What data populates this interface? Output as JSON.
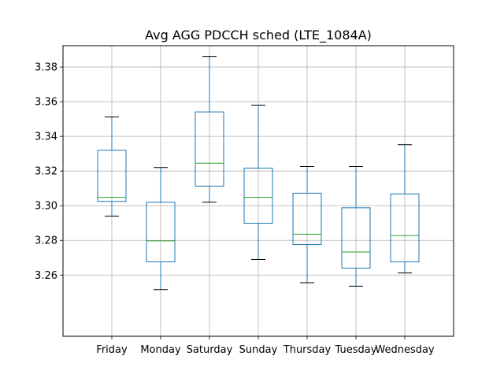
{
  "chart_data": {
    "type": "box",
    "title": "Avg AGG PDCCH sched (LTE_1084A)",
    "xlabel": "",
    "ylabel": "",
    "categories": [
      "Friday",
      "Monday",
      "Saturday",
      "Sunday",
      "Thursday",
      "Tuesday",
      "Wednesday"
    ],
    "boxes": [
      {
        "whisker_low": 3.294,
        "q1": 3.3025,
        "median": 3.3048,
        "q3": 3.332,
        "whisker_high": 3.3512
      },
      {
        "whisker_low": 3.2516,
        "q1": 3.2676,
        "median": 3.2797,
        "q3": 3.302,
        "whisker_high": 3.322
      },
      {
        "whisker_low": 3.302,
        "q1": 3.3113,
        "median": 3.3245,
        "q3": 3.3541,
        "whisker_high": 3.3861
      },
      {
        "whisker_low": 3.269,
        "q1": 3.2899,
        "median": 3.3048,
        "q3": 3.3217,
        "whisker_high": 3.358
      },
      {
        "whisker_low": 3.2556,
        "q1": 3.2776,
        "median": 3.2836,
        "q3": 3.3072,
        "whisker_high": 3.3226
      },
      {
        "whisker_low": 3.2536,
        "q1": 3.264,
        "median": 3.2733,
        "q3": 3.2988,
        "whisker_high": 3.3226
      },
      {
        "whisker_low": 3.2612,
        "q1": 3.2676,
        "median": 3.2828,
        "q3": 3.3068,
        "whisker_high": 3.3352
      }
    ],
    "yticks": [
      "3.26",
      "3.28",
      "3.30",
      "3.32",
      "3.34",
      "3.36",
      "3.38"
    ],
    "ylim": [
      3.2247,
      3.3923
    ],
    "grid": true,
    "colors": {
      "box": "#1f77b4",
      "median": "#2ca02c",
      "cap": "#000000",
      "grid": "#b0b0b0",
      "axes": "#000000"
    }
  }
}
